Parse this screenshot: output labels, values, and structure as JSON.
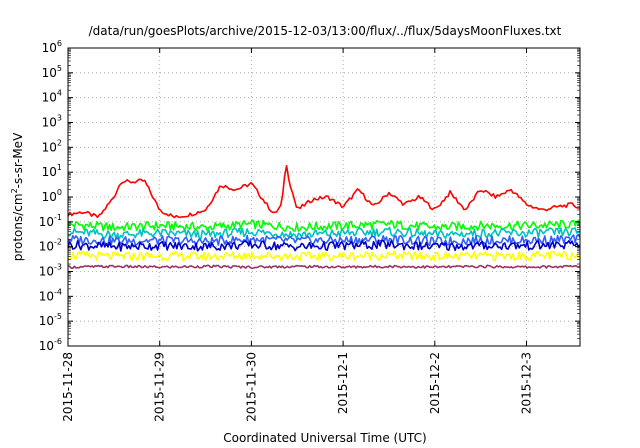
{
  "chart_data": {
    "type": "line",
    "title": "/data/run/goesPlots/archive/2015-12-03/13:00/flux/../flux/5daysMoonFluxes.txt",
    "xlabel": "Coordinated Universal Time (UTC)",
    "ylabel": {
      "prefix": "protons/cm",
      "sup": "2",
      "suffix": "-s-sr-MeV"
    },
    "y_scale": "log",
    "ylim": [
      1e-06,
      1000000.0
    ],
    "xlim": [
      "2015-11-28 00:00",
      "2015-12-03 14:00"
    ],
    "grid": true,
    "legend": "none",
    "x_ticks": [
      "2015-11-28",
      "2015-11-29",
      "2015-11-30",
      "2015-12-1",
      "2015-12-2",
      "2015-12-3"
    ],
    "y_ticks": [
      {
        "base": "10",
        "exp": "-6"
      },
      {
        "base": "10",
        "exp": "-5"
      },
      {
        "base": "10",
        "exp": "-4"
      },
      {
        "base": "10",
        "exp": "-3"
      },
      {
        "base": "10",
        "exp": "-2"
      },
      {
        "base": "10",
        "exp": "-1"
      },
      {
        "base": "10",
        "exp": "0"
      },
      {
        "base": "10",
        "exp": "1"
      },
      {
        "base": "10",
        "exp": "2"
      },
      {
        "base": "10",
        "exp": "3"
      },
      {
        "base": "10",
        "exp": "4"
      },
      {
        "base": "10",
        "exp": "5"
      },
      {
        "base": "10",
        "exp": "6"
      }
    ],
    "series": [
      {
        "color": "#ff0000",
        "x": [
          "2015-11-28 00:00",
          "2015-11-28 04:00",
          "2015-11-28 08:00",
          "2015-11-28 12:00",
          "2015-11-28 14:00",
          "2015-11-28 16:00",
          "2015-11-28 20:00",
          "2015-11-29 00:00",
          "2015-11-29 04:00",
          "2015-11-29 08:00",
          "2015-11-29 12:00",
          "2015-11-29 16:00",
          "2015-11-29 20:00",
          "2015-11-30 00:00",
          "2015-11-30 04:00",
          "2015-11-30 06:00",
          "2015-11-30 08:00",
          "2015-11-30 09:00",
          "2015-11-30 10:00",
          "2015-11-30 12:00",
          "2015-11-30 16:00",
          "2015-11-30 20:00",
          "2015-12-01 00:00",
          "2015-12-01 04:00",
          "2015-12-01 08:00",
          "2015-12-01 12:00",
          "2015-12-01 16:00",
          "2015-12-01 20:00",
          "2015-12-02 00:00",
          "2015-12-02 04:00",
          "2015-12-02 08:00",
          "2015-12-02 12:00",
          "2015-12-02 16:00",
          "2015-12-02 20:00",
          "2015-12-03 00:00",
          "2015-12-03 04:00",
          "2015-12-03 08:00",
          "2015-12-03 12:00",
          "2015-12-03 14:00"
        ],
        "y": [
          0.2,
          0.25,
          0.15,
          1.0,
          4.5,
          4.0,
          4.5,
          0.3,
          0.15,
          0.2,
          0.3,
          3.0,
          2.0,
          3.5,
          0.5,
          0.2,
          0.5,
          25,
          4.0,
          0.3,
          0.8,
          1.0,
          0.4,
          2.0,
          0.4,
          1.5,
          0.5,
          1.0,
          0.3,
          1.5,
          0.3,
          2.0,
          1.0,
          2.0,
          0.5,
          0.3,
          0.4,
          0.5,
          0.35
        ]
      },
      {
        "color": "#00ff00",
        "x": [
          "2015-11-28 00:00",
          "2015-11-28 12:00",
          "2015-11-29 00:00",
          "2015-11-29 12:00",
          "2015-11-30 00:00",
          "2015-11-30 12:00",
          "2015-12-01 00:00",
          "2015-12-01 12:00",
          "2015-12-02 00:00",
          "2015-12-02 12:00",
          "2015-12-03 00:00",
          "2015-12-03 14:00"
        ],
        "y": [
          0.08,
          0.06,
          0.07,
          0.06,
          0.08,
          0.06,
          0.07,
          0.08,
          0.06,
          0.07,
          0.07,
          0.08
        ]
      },
      {
        "color": "#00c0c0",
        "x": [
          "2015-11-28 00:00",
          "2015-11-28 12:00",
          "2015-11-29 00:00",
          "2015-11-29 12:00",
          "2015-11-30 00:00",
          "2015-11-30 12:00",
          "2015-12-01 00:00",
          "2015-12-01 12:00",
          "2015-12-02 00:00",
          "2015-12-02 12:00",
          "2015-12-03 00:00",
          "2015-12-03 14:00"
        ],
        "y": [
          0.04,
          0.03,
          0.035,
          0.03,
          0.04,
          0.03,
          0.035,
          0.04,
          0.03,
          0.035,
          0.035,
          0.04
        ]
      },
      {
        "color": "#3060ff",
        "x": [
          "2015-11-28 00:00",
          "2015-11-28 12:00",
          "2015-11-29 00:00",
          "2015-11-29 12:00",
          "2015-11-30 00:00",
          "2015-11-30 12:00",
          "2015-12-01 00:00",
          "2015-12-01 12:00",
          "2015-12-02 00:00",
          "2015-12-02 12:00",
          "2015-12-03 00:00",
          "2015-12-03 14:00"
        ],
        "y": [
          0.02,
          0.017,
          0.018,
          0.016,
          0.02,
          0.017,
          0.018,
          0.02,
          0.016,
          0.018,
          0.018,
          0.02
        ]
      },
      {
        "color": "#0000c8",
        "x": [
          "2015-11-28 00:00",
          "2015-11-28 12:00",
          "2015-11-29 00:00",
          "2015-11-29 12:00",
          "2015-11-30 00:00",
          "2015-11-30 12:00",
          "2015-12-01 00:00",
          "2015-12-01 12:00",
          "2015-12-02 00:00",
          "2015-12-02 12:00",
          "2015-12-03 00:00",
          "2015-12-03 14:00"
        ],
        "y": [
          0.012,
          0.01,
          0.011,
          0.01,
          0.012,
          0.01,
          0.011,
          0.012,
          0.01,
          0.011,
          0.011,
          0.012
        ]
      },
      {
        "color": "#ffff00",
        "x": [
          "2015-11-28 00:00",
          "2015-11-28 12:00",
          "2015-11-29 00:00",
          "2015-11-29 12:00",
          "2015-11-30 00:00",
          "2015-11-30 12:00",
          "2015-12-01 00:00",
          "2015-12-01 12:00",
          "2015-12-02 00:00",
          "2015-12-02 12:00",
          "2015-12-03 00:00",
          "2015-12-03 14:00"
        ],
        "y": [
          0.0045,
          0.004,
          0.0042,
          0.004,
          0.0045,
          0.004,
          0.0042,
          0.0045,
          0.004,
          0.0042,
          0.0042,
          0.0045
        ]
      },
      {
        "color": "#993366",
        "x": [
          "2015-11-28 00:00",
          "2015-11-28 12:00",
          "2015-11-29 00:00",
          "2015-11-29 12:00",
          "2015-11-30 00:00",
          "2015-11-30 12:00",
          "2015-12-01 00:00",
          "2015-12-01 12:00",
          "2015-12-02 00:00",
          "2015-12-02 12:00",
          "2015-12-03 00:00",
          "2015-12-03 14:00"
        ],
        "y": [
          0.0015,
          0.0016,
          0.0015,
          0.0016,
          0.0015,
          0.0016,
          0.0015,
          0.0016,
          0.0015,
          0.0016,
          0.0015,
          0.0016
        ]
      }
    ]
  }
}
